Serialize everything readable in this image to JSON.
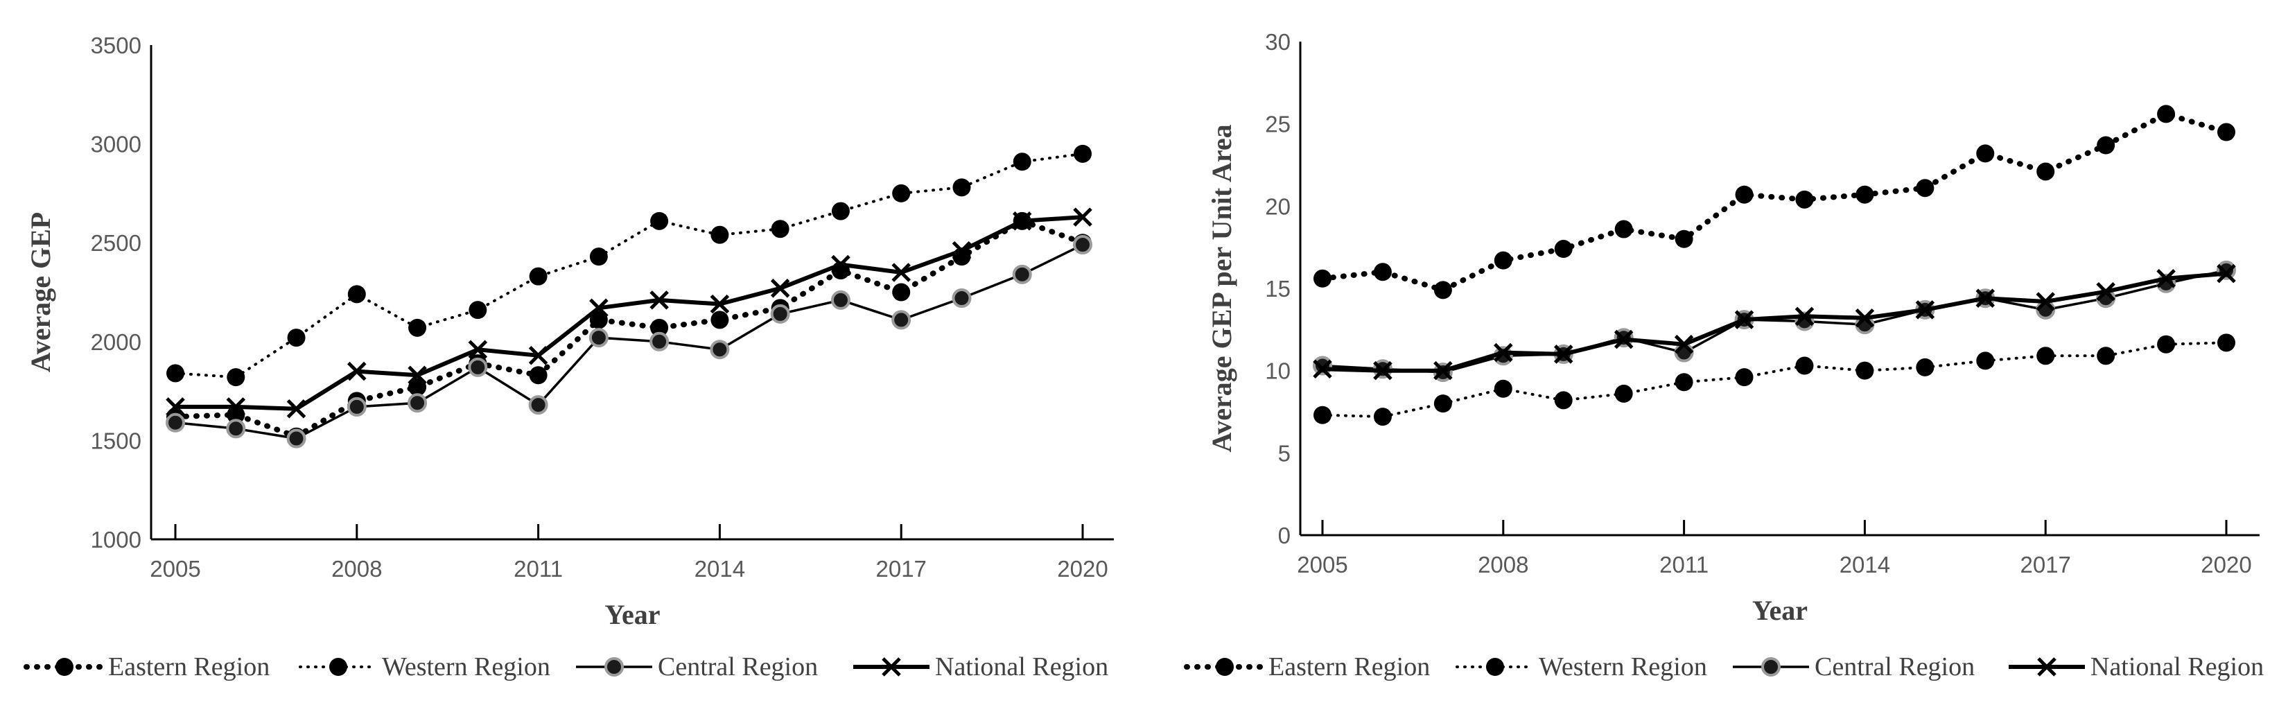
{
  "chart_data": [
    {
      "type": "line",
      "title": "",
      "xlabel": "Year",
      "ylabel": "Average GEP",
      "ylim": [
        1000,
        3500
      ],
      "yticks": [
        1000,
        1500,
        2000,
        2500,
        3000,
        3500
      ],
      "xticks": [
        2005,
        2008,
        2011,
        2014,
        2017,
        2020
      ],
      "x": [
        2005,
        2006,
        2007,
        2008,
        2009,
        2010,
        2011,
        2012,
        2013,
        2014,
        2015,
        2016,
        2017,
        2018,
        2019,
        2020
      ],
      "legend_position": "bottom",
      "series": [
        {
          "name": "Eastern Region",
          "style": "dotted-bold",
          "marker": "circle",
          "values": [
            1620,
            1630,
            1520,
            1700,
            1770,
            1890,
            1830,
            2110,
            2070,
            2110,
            2170,
            2360,
            2250,
            2430,
            2610,
            2500
          ]
        },
        {
          "name": "Western Region",
          "style": "dotted",
          "marker": "circle",
          "values": [
            1840,
            1820,
            2020,
            2240,
            2070,
            2160,
            2330,
            2430,
            2610,
            2540,
            2570,
            2660,
            2750,
            2780,
            2910,
            2950
          ]
        },
        {
          "name": "Central Region",
          "style": "solid",
          "marker": "circle-gray",
          "values": [
            1590,
            1560,
            1510,
            1670,
            1690,
            1870,
            1680,
            2020,
            2000,
            1960,
            2140,
            2210,
            2110,
            2220,
            2340,
            2490
          ]
        },
        {
          "name": "National Region",
          "style": "solid-bold",
          "marker": "x",
          "values": [
            1670,
            1670,
            1660,
            1850,
            1830,
            1960,
            1930,
            2170,
            2210,
            2190,
            2270,
            2390,
            2350,
            2460,
            2610,
            2630
          ]
        }
      ]
    },
    {
      "type": "line",
      "title": "",
      "xlabel": "Year",
      "ylabel": "Average GEP per Unit Area",
      "ylim": [
        0,
        30
      ],
      "yticks": [
        0,
        5,
        10,
        15,
        20,
        25,
        30
      ],
      "xticks": [
        2005,
        2008,
        2011,
        2014,
        2017,
        2020
      ],
      "x": [
        2005,
        2006,
        2007,
        2008,
        2009,
        2010,
        2011,
        2012,
        2013,
        2014,
        2015,
        2016,
        2017,
        2018,
        2019,
        2020
      ],
      "legend_position": "bottom",
      "series": [
        {
          "name": "Eastern Region",
          "style": "dotted-bold",
          "marker": "circle",
          "values": [
            15.6,
            16.0,
            14.9,
            16.7,
            17.4,
            18.6,
            18.0,
            20.7,
            20.4,
            20.7,
            21.1,
            23.2,
            22.1,
            23.7,
            25.6,
            24.5
          ]
        },
        {
          "name": "Western Region",
          "style": "dotted",
          "marker": "circle",
          "values": [
            7.3,
            7.2,
            8.0,
            8.9,
            8.2,
            8.6,
            9.3,
            9.6,
            10.3,
            10.0,
            10.2,
            10.6,
            10.9,
            10.9,
            11.6,
            11.7
          ]
        },
        {
          "name": "Central Region",
          "style": "solid",
          "marker": "circle-gray",
          "values": [
            10.3,
            10.1,
            9.9,
            10.9,
            11.0,
            12.0,
            11.1,
            13.1,
            13.0,
            12.8,
            13.7,
            14.4,
            13.7,
            14.4,
            15.3,
            16.1
          ]
        },
        {
          "name": "National Region",
          "style": "solid-bold",
          "marker": "x",
          "values": [
            10.1,
            10.0,
            10.0,
            11.1,
            11.0,
            11.9,
            11.6,
            13.1,
            13.3,
            13.2,
            13.7,
            14.4,
            14.2,
            14.8,
            15.6,
            15.9
          ]
        }
      ]
    }
  ]
}
